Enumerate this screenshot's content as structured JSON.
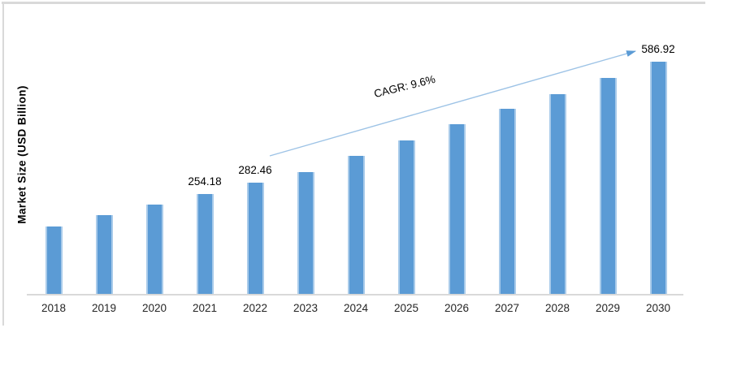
{
  "chart_data": {
    "type": "bar",
    "title": "",
    "xlabel": "",
    "ylabel": "Market Size (USD Billion)",
    "categories": [
      "2018",
      "2019",
      "2020",
      "2021",
      "2022",
      "2023",
      "2024",
      "2025",
      "2026",
      "2027",
      "2028",
      "2029",
      "2030"
    ],
    "values": [
      172,
      200,
      227,
      254.18,
      282.46,
      309,
      350,
      389,
      429,
      468,
      505,
      546,
      586.92
    ],
    "value_labels": [
      "",
      "",
      "",
      "254.18",
      "282.46",
      "",
      "",
      "",
      "",
      "",
      "",
      "",
      "586.92"
    ],
    "annotation": {
      "text": "CAGR: 9.6%"
    },
    "ylim": [
      0,
      600
    ],
    "grid": false,
    "legend": false,
    "colors": {
      "bar_fill": "#5B9BD5",
      "bar_edge": "#A9CBEA",
      "axis_line": "#D9D9D9",
      "arrow_line": "#9DC3E6",
      "arrow_head": "#5B9BD5",
      "frame": "#D9D9D9",
      "label_text": "#000000",
      "tick_text": "#262626"
    }
  }
}
